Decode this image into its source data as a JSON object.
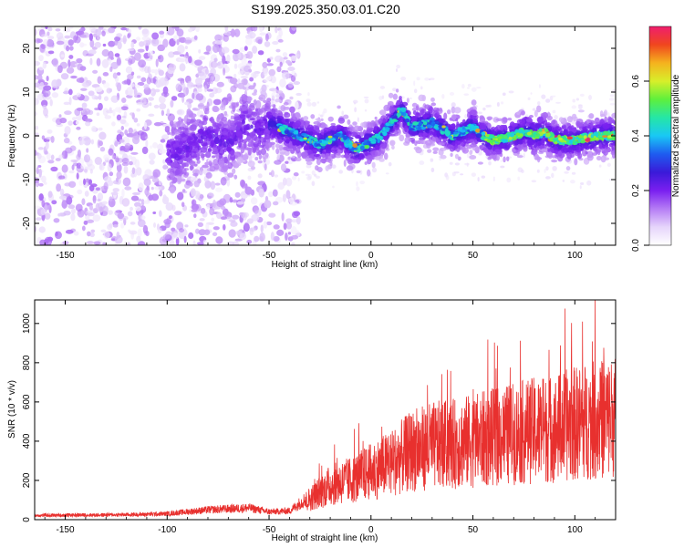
{
  "title": "S199.2025.350.03.01.C20",
  "colors": {
    "snr_line": "#e8302e",
    "colormap": [
      "#ffffff",
      "#e6d5fb",
      "#b57cf5",
      "#7a1ff0",
      "#3a1ad8",
      "#1e5cf0",
      "#19c8f5",
      "#25e6a6",
      "#5ef03c",
      "#d8ef2a",
      "#f5b21e",
      "#f0461e",
      "#f01e6e"
    ]
  },
  "chart_data": [
    {
      "type": "heatmap",
      "name": "spectrogram",
      "xlabel": "Height of straight line (km)",
      "ylabel": "Frequency (Hz)",
      "xlim": [
        -165,
        120
      ],
      "ylim": [
        -25,
        25
      ],
      "xticks": [
        -150,
        -100,
        -50,
        0,
        50,
        100
      ],
      "yticks": [
        -20,
        -10,
        0,
        10,
        20
      ],
      "ridge": [
        [
          -95,
          -4
        ],
        [
          -85,
          -1
        ],
        [
          -78,
          0
        ],
        [
          -70,
          -2
        ],
        [
          -62,
          3
        ],
        [
          -55,
          1
        ],
        [
          -50,
          3
        ],
        [
          -45,
          2
        ],
        [
          -35,
          0
        ],
        [
          -25,
          -2
        ],
        [
          -15,
          0
        ],
        [
          -8,
          -3
        ],
        [
          -2,
          -2
        ],
        [
          5,
          0
        ],
        [
          10,
          3
        ],
        [
          15,
          6
        ],
        [
          20,
          2
        ],
        [
          30,
          3
        ],
        [
          40,
          0
        ],
        [
          50,
          2
        ],
        [
          55,
          0
        ],
        [
          60,
          -1
        ],
        [
          70,
          0
        ],
        [
          75,
          1
        ],
        [
          80,
          0
        ],
        [
          85,
          1
        ],
        [
          90,
          -1
        ],
        [
          100,
          -1
        ],
        [
          110,
          0
        ],
        [
          118,
          0
        ]
      ]
    },
    {
      "type": "colorbar",
      "name": "amplitude-colorbar",
      "label": "Normalized spectral amplitude",
      "range": [
        0,
        0.8
      ],
      "ticks": [
        "0.0",
        "0.2",
        "0.4",
        "0.6"
      ]
    },
    {
      "type": "line",
      "name": "snr",
      "xlabel": "Height of straight line (km)",
      "ylabel": "SNR (10 * v/v)",
      "xlim": [
        -165,
        120
      ],
      "ylim": [
        0,
        1120
      ],
      "xticks": [
        -150,
        -100,
        -50,
        0,
        50,
        100
      ],
      "yticks": [
        0,
        200,
        400,
        600,
        800,
        1000
      ],
      "envelope": [
        [
          -165,
          22
        ],
        [
          -120,
          25
        ],
        [
          -100,
          30
        ],
        [
          -80,
          50
        ],
        [
          -60,
          60
        ],
        [
          -50,
          40
        ],
        [
          -40,
          45
        ],
        [
          -30,
          120
        ],
        [
          -20,
          200
        ],
        [
          -10,
          230
        ],
        [
          0,
          280
        ],
        [
          10,
          330
        ],
        [
          20,
          400
        ],
        [
          30,
          430
        ],
        [
          40,
          440
        ],
        [
          50,
          460
        ],
        [
          60,
          480
        ],
        [
          70,
          500
        ],
        [
          80,
          520
        ],
        [
          90,
          530
        ],
        [
          100,
          560
        ],
        [
          110,
          580
        ],
        [
          120,
          600
        ]
      ]
    }
  ]
}
